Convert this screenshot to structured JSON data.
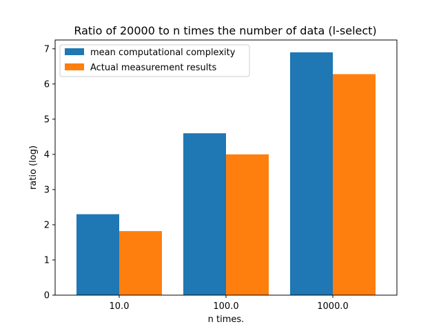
{
  "chart_data": {
    "type": "bar",
    "title": "Ratio of 20000 to n times the number of data (l-select)",
    "xlabel": "n times.",
    "ylabel": "ratio (log)",
    "categories": [
      "10.0",
      "100.0",
      "1000.0"
    ],
    "series": [
      {
        "name": "mean computational complexity",
        "color": "#1f77b4",
        "values": [
          2.3,
          4.6,
          6.9
        ]
      },
      {
        "name": "Actual measurement results",
        "color": "#ff7f0e",
        "values": [
          1.82,
          4.0,
          6.28
        ]
      }
    ],
    "ylim": [
      0,
      7.25
    ],
    "yticks": [
      "0",
      "1",
      "2",
      "3",
      "4",
      "5",
      "6",
      "7"
    ],
    "grid": false,
    "legend_position": "top-left"
  }
}
